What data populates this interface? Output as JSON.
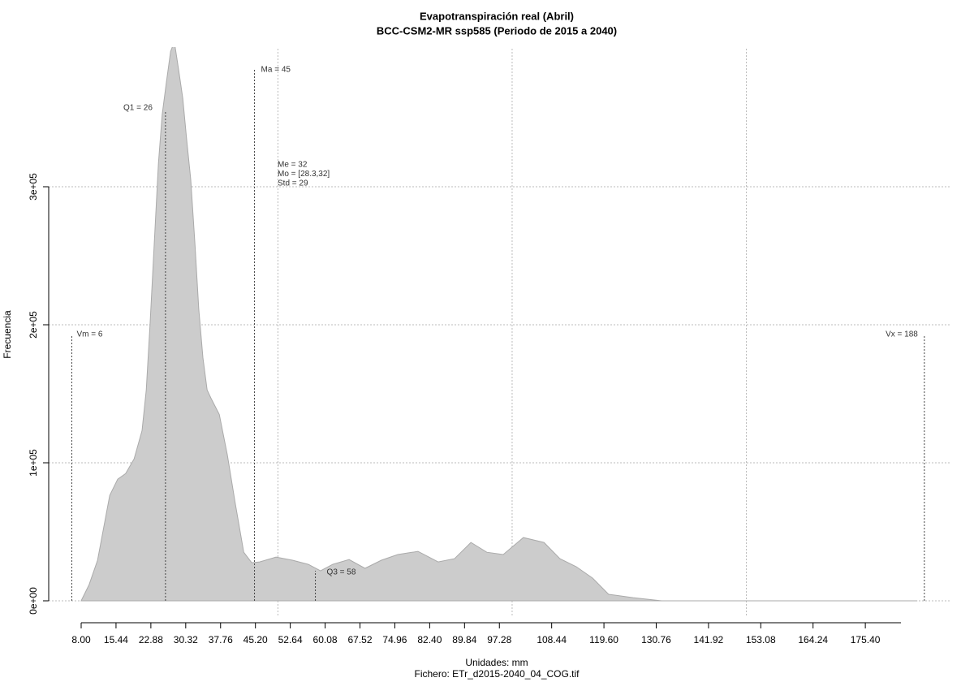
{
  "chart_data": {
    "type": "area",
    "title": "Evapotranspiración real (Abril)",
    "subtitle": "BCC-CSM2-MR ssp585 (Periodo de 2015 a 2040)",
    "x_label": "Unidades: mm",
    "y_label": "Frecuencia",
    "footer": "Fichero: ETr_d2015-2040_04_COG.tif",
    "color": "#cccccc",
    "x": [
      8.0,
      9.7,
      11.5,
      14.1,
      15.8,
      17.5,
      19.3,
      21.0,
      21.9,
      22.7,
      23.6,
      24.5,
      25.3,
      26.2,
      27.1,
      27.9,
      28.8,
      29.7,
      30.5,
      31.4,
      32.3,
      33.1,
      34.0,
      34.9,
      35.7,
      37.5,
      39.2,
      40.9,
      42.7,
      44.4,
      46.1,
      49.6,
      53.1,
      56.5,
      59.1,
      61.7,
      65.2,
      68.6,
      72.1,
      75.6,
      79.9,
      84.2,
      87.7,
      91.2,
      94.6,
      98.1,
      102.4,
      106.8,
      110.2,
      113.7,
      117.2,
      120.6,
      125.8,
      131.9,
      146.6,
      164.0,
      186.5
    ],
    "values": [
      0,
      11700,
      29400,
      76400,
      88100,
      92200,
      102800,
      123300,
      152700,
      199600,
      258300,
      317000,
      352200,
      375700,
      398000,
      405000,
      385000,
      364000,
      334600,
      305200,
      258300,
      211300,
      176100,
      152700,
      146800,
      135000,
      105700,
      70400,
      35200,
      27600,
      28200,
      31700,
      29400,
      26400,
      21700,
      26400,
      29900,
      23500,
      29400,
      33500,
      35800,
      28200,
      30500,
      42300,
      35200,
      33500,
      45800,
      42300,
      30500,
      24700,
      16400,
      4700,
      2300,
      0,
      0,
      0,
      0
    ],
    "xlim": [
      1.07,
      193.4
    ],
    "ylim": [
      0,
      400000
    ],
    "xticks": [
      {
        "value": 8,
        "label": "8.00"
      },
      15.44,
      22.88,
      30.32,
      37.76,
      {
        "value": 45.2,
        "label": "45.20"
      },
      52.64,
      60.08,
      67.52,
      74.96,
      {
        "value": 82.4,
        "label": "82.40"
      },
      89.84,
      97.28,
      108.44,
      {
        "value": 119.6,
        "label": "119.60"
      },
      130.76,
      141.92,
      153.08,
      164.24,
      {
        "value": 175.4,
        "label": "175.40"
      }
    ],
    "yticks": [
      {
        "value": 0,
        "label": "0e+00"
      },
      {
        "value": 100000,
        "label": "1e+05"
      },
      {
        "value": 200000,
        "label": "2e+05"
      },
      {
        "value": 300000,
        "label": "3e+05"
      }
    ],
    "xgrid": [
      50,
      100,
      150
    ],
    "grid": true,
    "annotations": [
      {
        "text": "Vm = 6",
        "x": 6
      },
      {
        "text": "Q1 = 26",
        "x": 26
      },
      {
        "text": "Ma = 45",
        "x": 45
      },
      {
        "text": "Q3 = 58",
        "x": 58
      },
      {
        "text": "Vx = 188",
        "x": 188
      }
    ],
    "stats_text": [
      "Me = 32",
      "Mo = [28.3,32]",
      "Std = 29"
    ]
  }
}
